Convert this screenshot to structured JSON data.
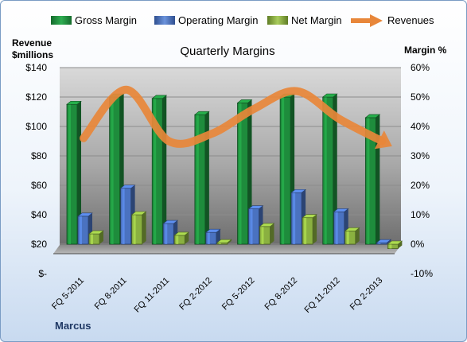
{
  "author": "Marcus",
  "chart_data": {
    "type": "bar",
    "title": "Quarterly Margins",
    "left_axis_label": [
      "Revenue",
      "$millions"
    ],
    "right_axis_label": "Margin %",
    "categories": [
      "FQ 5-2011",
      "FQ 8-2011",
      "FQ 11-2011",
      "FQ 2-2012",
      "FQ 5-2012",
      "FQ 8-2012",
      "FQ 11-2012",
      "FQ 2-2013"
    ],
    "left_ylim": [
      0,
      140
    ],
    "left_ticks": [
      0,
      20,
      40,
      60,
      80,
      100,
      120,
      140
    ],
    "left_tick_labels": [
      "$-",
      "$20",
      "$40",
      "$60",
      "$80",
      "$100",
      "$120",
      "$140"
    ],
    "right_ylim": [
      -10,
      60
    ],
    "right_ticks": [
      -10,
      0,
      10,
      20,
      30,
      40,
      50,
      60
    ],
    "right_tick_labels": [
      "-10%",
      "0%",
      "10%",
      "20%",
      "30%",
      "40%",
      "50%",
      "60%"
    ],
    "series": [
      {
        "name": "Gross Margin",
        "kind": "bar",
        "axis": "right",
        "color": "#1e8c3c",
        "values": [
          47.5,
          50.0,
          49.5,
          44.0,
          48.0,
          50.0,
          50.0,
          43.0
        ]
      },
      {
        "name": "Operating Margin",
        "kind": "bar",
        "axis": "right",
        "color": "#4a72c0",
        "values": [
          9.5,
          19.0,
          7.0,
          4.0,
          12.0,
          17.5,
          11.0,
          0.5
        ]
      },
      {
        "name": "Net Margin",
        "kind": "bar",
        "axis": "right",
        "color": "#8ab040",
        "values": [
          3.5,
          10.0,
          3.0,
          0.5,
          6.0,
          9.0,
          4.5,
          -1.5
        ]
      },
      {
        "name": "Revenues",
        "kind": "line",
        "axis": "left",
        "color": "#e8873a",
        "values": [
          92,
          125,
          90,
          95,
          112,
          124,
          105,
          90
        ]
      }
    ],
    "grid": true,
    "legend": "top"
  }
}
